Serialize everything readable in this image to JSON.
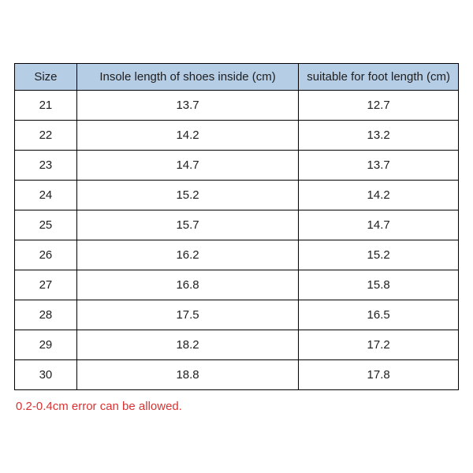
{
  "table": {
    "header_bg": "#b6cde6",
    "border_color": "#000000",
    "text_color": "#202020",
    "header_fontsize": 15,
    "cell_fontsize": 15,
    "columns": [
      {
        "key": "size",
        "label": "Size",
        "width_pct": 14
      },
      {
        "key": "insole",
        "label": "Insole length of shoes inside (cm)",
        "width_pct": 50
      },
      {
        "key": "foot",
        "label": "suitable for foot length (cm)",
        "width_pct": 36
      }
    ],
    "rows": [
      {
        "size": "21",
        "insole": "13.7",
        "foot": "12.7"
      },
      {
        "size": "22",
        "insole": "14.2",
        "foot": "13.2"
      },
      {
        "size": "23",
        "insole": "14.7",
        "foot": "13.7"
      },
      {
        "size": "24",
        "insole": "15.2",
        "foot": "14.2"
      },
      {
        "size": "25",
        "insole": "15.7",
        "foot": "14.7"
      },
      {
        "size": "26",
        "insole": "16.2",
        "foot": "15.2"
      },
      {
        "size": "27",
        "insole": "16.8",
        "foot": "15.8"
      },
      {
        "size": "28",
        "insole": "17.5",
        "foot": "16.5"
      },
      {
        "size": "29",
        "insole": "18.2",
        "foot": "17.2"
      },
      {
        "size": "30",
        "insole": "18.8",
        "foot": "17.8"
      }
    ]
  },
  "footnote": {
    "text": "0.2-0.4cm error can be allowed.",
    "color": "#d93333",
    "fontsize": 15
  }
}
